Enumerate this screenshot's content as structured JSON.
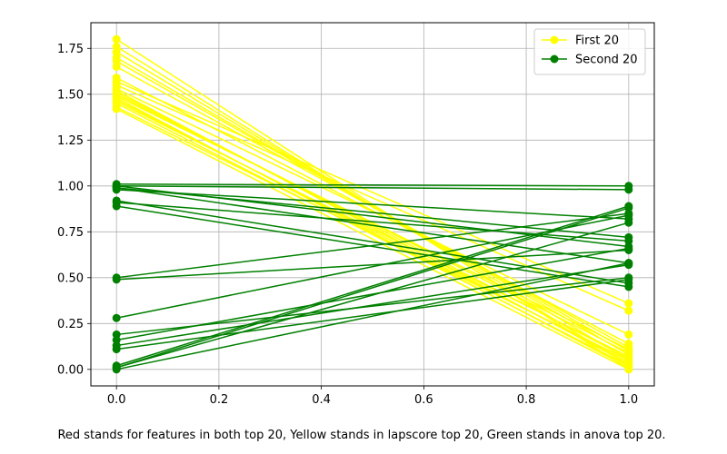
{
  "chart_data": {
    "type": "line",
    "title": "",
    "xlabel": "",
    "ylabel": "",
    "xlim": [
      -0.05,
      1.05
    ],
    "ylim": [
      -0.09,
      1.89
    ],
    "xticks": [
      0.0,
      0.2,
      0.4,
      0.6,
      0.8,
      1.0
    ],
    "xtick_labels": [
      "0.0",
      "0.2",
      "0.4",
      "0.6",
      "0.8",
      "1.0"
    ],
    "yticks": [
      0.0,
      0.25,
      0.5,
      0.75,
      1.0,
      1.25,
      1.5,
      1.75
    ],
    "ytick_labels": [
      "0.00",
      "0.25",
      "0.50",
      "0.75",
      "1.00",
      "1.25",
      "1.50",
      "1.75"
    ],
    "grid": true,
    "legend_position": "top-right",
    "x": [
      0,
      1
    ],
    "series": [
      {
        "name": "First 20",
        "color": "#ffff00",
        "lines": [
          [
            1.8,
            0.0
          ],
          [
            1.76,
            0.02
          ],
          [
            1.73,
            0.05
          ],
          [
            1.7,
            0.08
          ],
          [
            1.68,
            0.1
          ],
          [
            1.65,
            0.12
          ],
          [
            1.59,
            0.14
          ],
          [
            1.57,
            0.36
          ],
          [
            1.55,
            0.32
          ],
          [
            1.53,
            0.19
          ],
          [
            1.52,
            0.03
          ],
          [
            1.51,
            0.06
          ],
          [
            1.5,
            0.09
          ],
          [
            1.49,
            0.11
          ],
          [
            1.48,
            0.01
          ],
          [
            1.47,
            0.04
          ],
          [
            1.46,
            0.07
          ],
          [
            1.45,
            0.02
          ],
          [
            1.43,
            0.05
          ],
          [
            1.42,
            0.0
          ]
        ]
      },
      {
        "name": "Second 20",
        "color": "#008000",
        "lines": [
          [
            1.01,
            1.0
          ],
          [
            1.0,
            0.98
          ],
          [
            1.0,
            0.67
          ],
          [
            0.99,
            0.58
          ],
          [
            0.99,
            0.72
          ],
          [
            0.98,
            0.82
          ],
          [
            0.92,
            0.47
          ],
          [
            0.91,
            0.7
          ],
          [
            0.89,
            0.45
          ],
          [
            0.5,
            0.85
          ],
          [
            0.49,
            0.65
          ],
          [
            0.28,
            0.84
          ],
          [
            0.19,
            0.5
          ],
          [
            0.16,
            0.66
          ],
          [
            0.13,
            0.57
          ],
          [
            0.11,
            0.49
          ],
          [
            0.02,
            0.89
          ],
          [
            0.01,
            0.88
          ],
          [
            0.01,
            0.8
          ],
          [
            0.0,
            0.58
          ]
        ]
      }
    ]
  },
  "caption": "Red stands for features in both top 20, Yellow stands in lapscore top 20, Green stands in anova top 20."
}
